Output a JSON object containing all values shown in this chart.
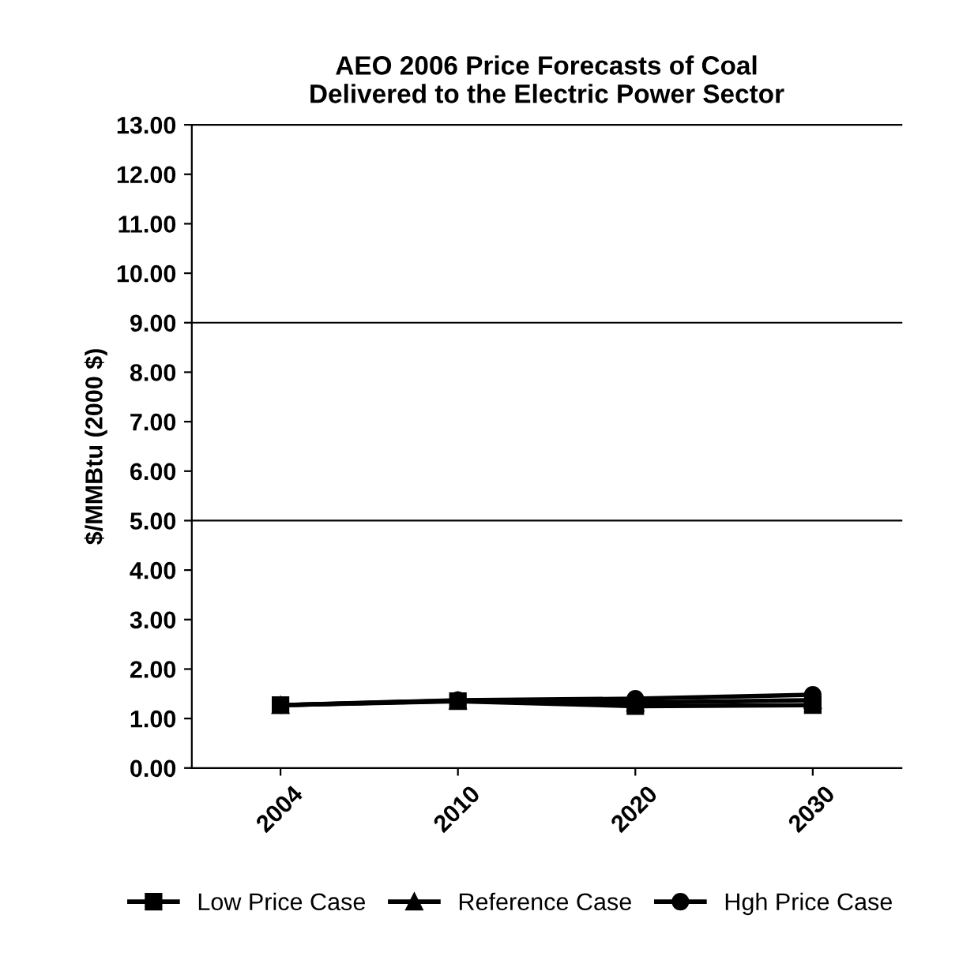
{
  "chart_data": {
    "type": "line",
    "title": "AEO 2006 Price Forecasts of Coal\nDelivered to the Electric Power Sector",
    "ylabel": "$/MMBtu (2000 $)",
    "categories": [
      "2004",
      "2010",
      "2020",
      "2030"
    ],
    "series": [
      {
        "name": "Low Price Case",
        "color": "#000000",
        "marker": "square",
        "values": [
          1.27,
          1.35,
          1.25,
          1.27
        ]
      },
      {
        "name": "Reference Case",
        "color": "#000000",
        "marker": "triangle",
        "values": [
          1.27,
          1.36,
          1.32,
          1.37
        ]
      },
      {
        "name": "Hgh Price Case",
        "color": "#000000",
        "marker": "circle",
        "values": [
          1.27,
          1.37,
          1.4,
          1.48
        ]
      }
    ],
    "ylim": [
      0,
      13
    ],
    "yticks": [
      {
        "value": 0,
        "label": "0.00"
      },
      {
        "value": 1,
        "label": "1.00"
      },
      {
        "value": 2,
        "label": "2.00"
      },
      {
        "value": 3,
        "label": "3.00"
      },
      {
        "value": 4,
        "label": "4.00"
      },
      {
        "value": 5,
        "label": "5.00"
      },
      {
        "value": 6,
        "label": "6.00"
      },
      {
        "value": 7,
        "label": "7.00"
      },
      {
        "value": 8,
        "label": "8.00"
      },
      {
        "value": 9,
        "label": "9.00"
      },
      {
        "value": 10,
        "label": "10.00"
      },
      {
        "value": 11,
        "label": "11.00"
      },
      {
        "value": 12,
        "label": "12.00"
      },
      {
        "value": 13,
        "label": "13.00"
      }
    ],
    "ref_lines": [
      {
        "axis": "y",
        "value": 5,
        "color": "#000000"
      },
      {
        "axis": "y",
        "value": 9,
        "color": "#000000"
      }
    ],
    "legend": "bottom",
    "grid": false
  }
}
